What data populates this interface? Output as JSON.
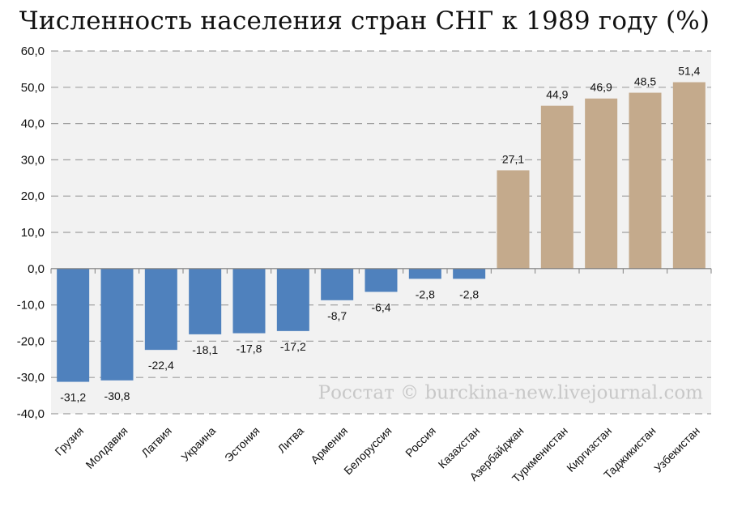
{
  "chart_data": {
    "type": "bar",
    "title": "Численность населения стран СНГ к 1989 году (%)",
    "categories": [
      "Грузия",
      "Молдавия",
      "Латвия",
      "Украина",
      "Эстония",
      "Литва",
      "Армения",
      "Белоруссия",
      "Россия",
      "Казахстан",
      "Азербайджан",
      "Туркменистан",
      "Киргизстан",
      "Таджикистан",
      "Узбекистан"
    ],
    "values": [
      -31.2,
      -30.8,
      -22.4,
      -18.1,
      -17.8,
      -17.2,
      -8.7,
      -6.4,
      -2.8,
      -2.8,
      27.1,
      44.9,
      46.9,
      48.5,
      51.4
    ],
    "value_labels": [
      "-31,2",
      "-30,8",
      "-22,4",
      "-18,1",
      "-17,8",
      "-17,2",
      "-8,7",
      "-6,4",
      "-2,8",
      "-2,8",
      "27,1",
      "44,9",
      "46,9",
      "48,5",
      "51,4"
    ],
    "yticks": [
      "60,0",
      "50,0",
      "40,0",
      "30,0",
      "20,0",
      "10,0",
      "0,0",
      "-10,0",
      "-20,0",
      "-30,0",
      "-40,0"
    ],
    "ylim": [
      -40,
      60
    ],
    "grid": true,
    "colors": {
      "negative": "#4f81bd",
      "positive": "#c4aa8c",
      "plot_bg": "#f2f2f2",
      "grid": "#a0a0a0"
    },
    "watermark": "Росстат © burckina-new.livejournal.com"
  }
}
